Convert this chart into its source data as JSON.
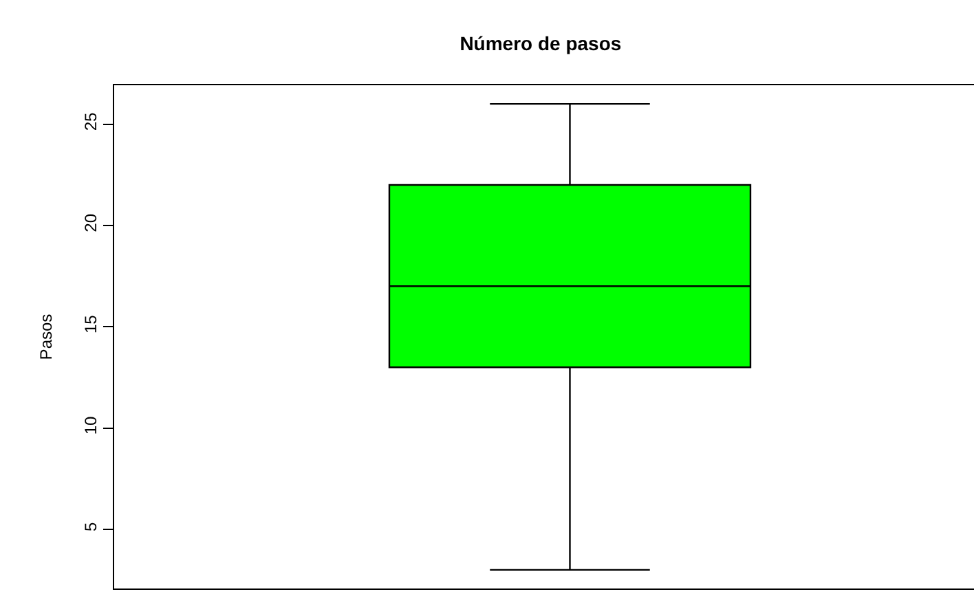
{
  "chart_data": {
    "type": "box",
    "title": "Número de pasos",
    "ylabel": "Pasos",
    "categories": [
      null
    ],
    "series": [
      {
        "color": "#00ff00",
        "boxes": [
          {
            "low": 3,
            "q1": 13,
            "median": 17,
            "q3": 22,
            "high": 26
          }
        ]
      }
    ],
    "ylim": [
      2.08,
      26.92
    ],
    "yticks": [
      5,
      10,
      15,
      20,
      25
    ],
    "grid": false,
    "tick_labels": "y"
  }
}
